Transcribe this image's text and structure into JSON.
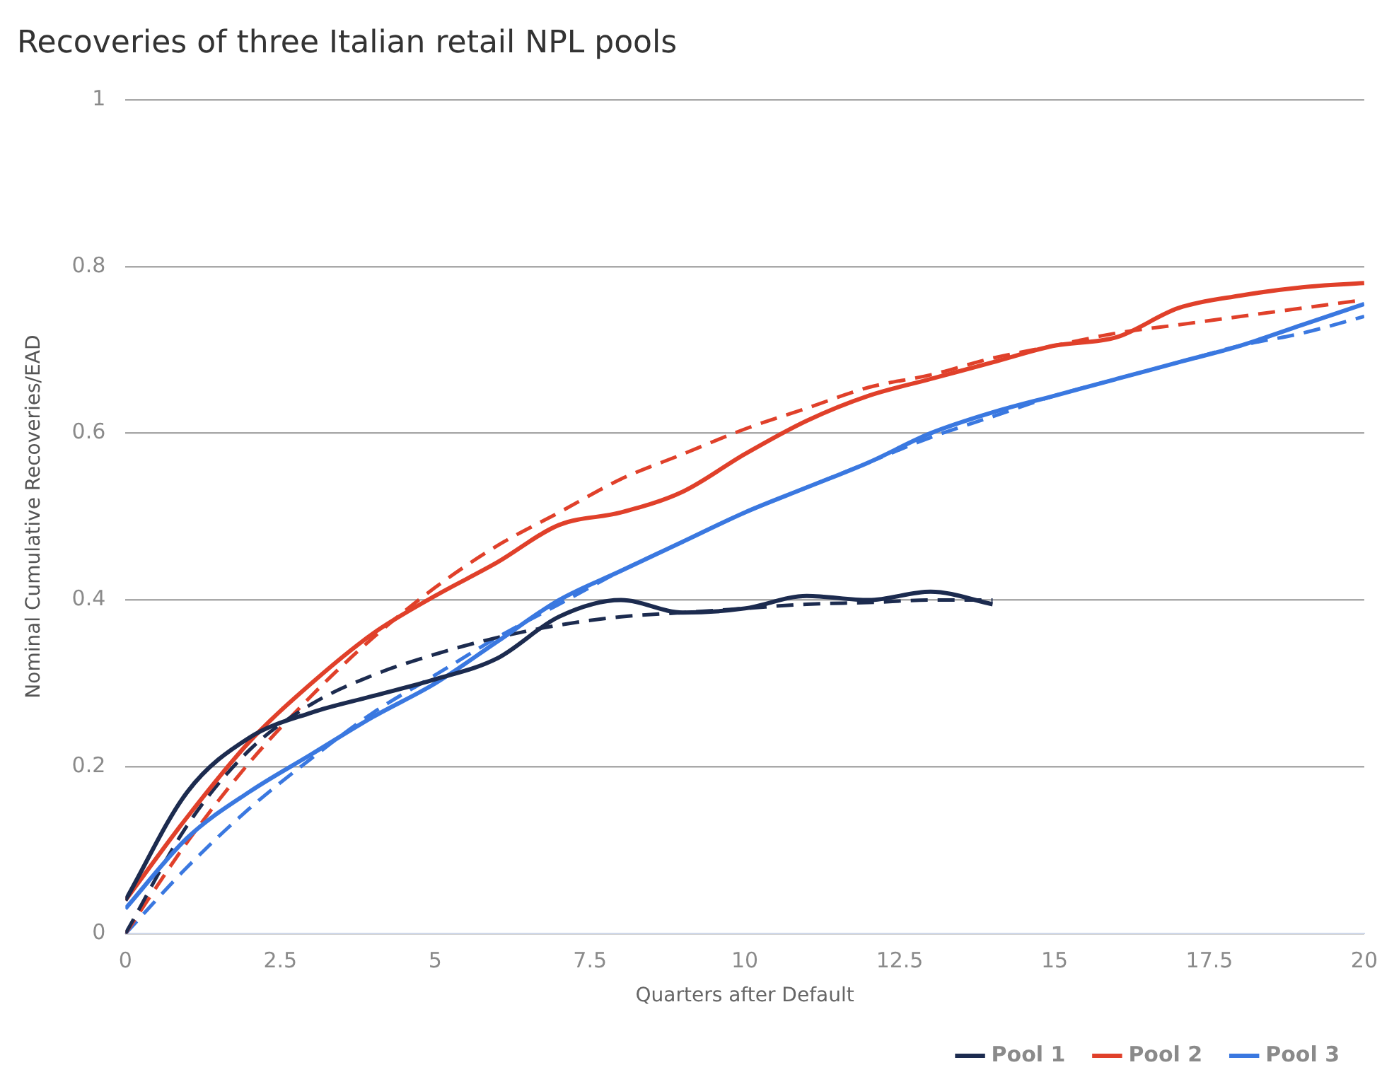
{
  "chart_data": {
    "type": "line",
    "title": "Recoveries of three Italian retail NPL pools",
    "xlabel": "Quarters after Default",
    "ylabel": "Nominal Cumulative Recoveries/EAD",
    "x": [
      0,
      1,
      2,
      3,
      4,
      5,
      6,
      7,
      8,
      9,
      10,
      11,
      12,
      13,
      14,
      15,
      16,
      17,
      18,
      19,
      20
    ],
    "series": [
      {
        "name": "Pool 1",
        "color": "#1c2b4f",
        "line_style": "solid",
        "values": [
          0.04,
          0.17,
          0.235,
          0.265,
          0.285,
          0.305,
          0.33,
          0.38,
          0.4,
          0.385,
          0.39,
          0.405,
          0.4,
          0.41,
          0.395,
          null,
          null,
          null,
          null,
          null,
          null
        ]
      },
      {
        "name": "Pool 2",
        "color": "#e0402a",
        "line_style": "solid",
        "values": [
          0.04,
          0.14,
          0.23,
          0.3,
          0.36,
          0.405,
          0.445,
          0.49,
          0.505,
          0.53,
          0.575,
          0.615,
          0.645,
          0.665,
          0.685,
          0.705,
          0.715,
          0.75,
          0.765,
          0.775,
          0.78
        ]
      },
      {
        "name": "Pool 3",
        "color": "#3a78e0",
        "line_style": "solid",
        "values": [
          0.03,
          0.115,
          0.17,
          0.215,
          0.26,
          0.3,
          0.35,
          0.4,
          0.435,
          0.47,
          0.505,
          0.535,
          0.565,
          0.6,
          0.625,
          0.645,
          0.665,
          0.685,
          0.705,
          0.73,
          0.755
        ]
      },
      {
        "color": "#1c2b4f",
        "line_style": "dashed",
        "values": [
          0,
          0.13,
          0.22,
          0.275,
          0.31,
          0.335,
          0.355,
          0.37,
          0.38,
          0.385,
          0.39,
          0.395,
          0.397,
          0.4,
          0.4,
          null,
          null,
          null,
          null,
          null,
          null
        ]
      },
      {
        "color": "#e0402a",
        "line_style": "dashed",
        "values": [
          0,
          0.11,
          0.205,
          0.285,
          0.355,
          0.415,
          0.465,
          0.505,
          0.545,
          0.575,
          0.605,
          0.63,
          0.655,
          0.67,
          0.69,
          0.705,
          0.72,
          0.73,
          0.74,
          0.75,
          0.76
        ]
      },
      {
        "color": "#3a78e0",
        "line_style": "dashed",
        "values": [
          0,
          0.08,
          0.15,
          0.21,
          0.265,
          0.31,
          0.355,
          0.395,
          0.435,
          0.47,
          0.505,
          0.535,
          0.565,
          0.595,
          0.62,
          0.645,
          0.665,
          0.685,
          0.705,
          0.72,
          0.74
        ]
      }
    ],
    "xlim": [
      0,
      20
    ],
    "xticks": [
      0,
      2.5,
      5,
      7.5,
      10,
      12.5,
      15,
      17.5,
      20
    ],
    "ylim": [
      0,
      1
    ],
    "yticks": [
      0,
      0.2,
      0.4,
      0.6,
      0.8,
      1
    ],
    "grid": "y",
    "legend": "bottom right",
    "marker": "none"
  }
}
